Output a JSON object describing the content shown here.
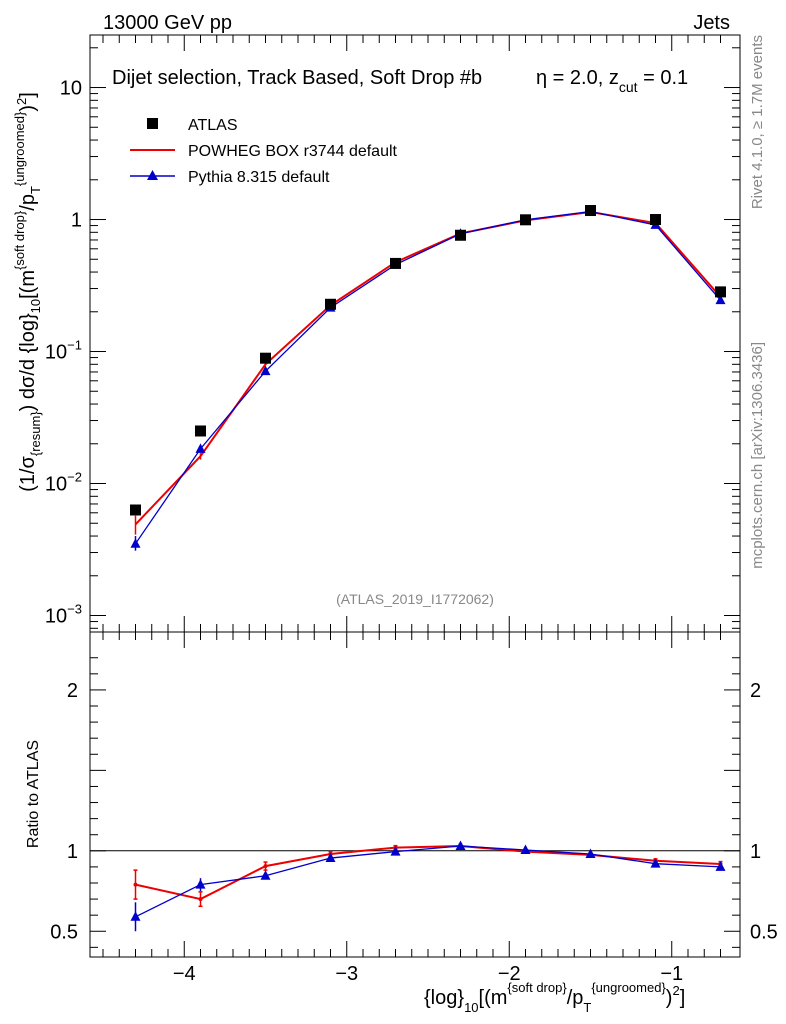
{
  "header": {
    "left": "13000 GeV pp",
    "right": "Jets",
    "side_top": "Rivet 4.1.0, ≥ 1.7M events",
    "side_bottom": "mcplots.cern.ch [arXiv:1306.3436]"
  },
  "colors": {
    "atlas": "#000000",
    "powheg": "#ee0000",
    "pythia": "#0000cc",
    "watermark": "#888888"
  },
  "chart_data": [
    {
      "type": "line",
      "panel": "main",
      "title_parts": {
        "pre": "Dijet selection, Track Based, Soft Drop #b",
        "eta": "η = 2.0, z",
        "sub": "cut",
        "post": " = 0.1"
      },
      "watermark": "(ATLAS_2019_I1772062)",
      "ylabel": "(1/σ{resum}) dσ/d {log}10[(m{soft drop}/pT{ungroomed})2]",
      "ylabel_parts": {
        "a": "(1/σ",
        "a_sub": "{resum}",
        "b": ") dσ/d {log}",
        "b_sub": "10",
        "c": "[(m",
        "c_sup": "{soft drop}",
        "d": "/p",
        "d_sub": "T",
        "d_sup": "{ungroomed}",
        "e": ")",
        "e_sup": "2",
        "f": "]"
      },
      "yscale": "log",
      "ylim": [
        0.00075,
        25
      ],
      "xlim": [
        -4.58,
        -0.58
      ],
      "yticks": [
        0.001,
        0.01,
        0.1,
        1,
        10
      ],
      "ytick_labels": [
        {
          "base": "10",
          "exp": "−3"
        },
        {
          "base": "10",
          "exp": "−2"
        },
        {
          "base": "10",
          "exp": "−1"
        },
        {
          "base": "1",
          "exp": ""
        },
        {
          "base": "10",
          "exp": ""
        }
      ],
      "legend": [
        {
          "name": "ATLAS",
          "style": "marker-square"
        },
        {
          "name": "POWHEG BOX r3744 default",
          "style": "line"
        },
        {
          "name": "Pythia 8.315 default",
          "style": "line-triangle"
        }
      ],
      "legend_position": "top-left",
      "x": [
        -4.3,
        -3.9,
        -3.5,
        -3.1,
        -2.7,
        -2.3,
        -1.9,
        -1.5,
        -1.1,
        -0.7
      ],
      "series": [
        {
          "name": "ATLAS",
          "values": [
            0.0063,
            0.025,
            0.089,
            0.228,
            0.465,
            0.76,
            0.995,
            1.17,
            1.0,
            0.283
          ]
        },
        {
          "name": "POWHEG BOX r3744 default",
          "values": [
            0.0049,
            0.0161,
            0.08,
            0.224,
            0.475,
            0.785,
            0.985,
            1.14,
            0.94,
            0.259
          ],
          "err_lo": [
            0.0041,
            0.0152
          ],
          "err_hi": [
            0.0057,
            0.017
          ]
        },
        {
          "name": "Pythia 8.315 default",
          "values": [
            0.0035,
            0.0183,
            0.071,
            0.215,
            0.455,
            0.78,
            0.995,
            1.15,
            0.91,
            0.245
          ],
          "err_lo": [
            0.0031,
            0.0173
          ],
          "err_hi": [
            0.004,
            0.0193
          ]
        }
      ]
    },
    {
      "type": "line",
      "panel": "ratio",
      "ylabel": "Ratio to ATLAS",
      "xlabel_parts": {
        "a": "{log}",
        "a_sub": "10",
        "b": "[(m",
        "b_sup": "{soft drop}",
        "c": "/p",
        "c_sub": "T",
        "c_sup": "{ungroomed}",
        "d": ")",
        "d_sup": "2",
        "e": "]"
      },
      "ylim": [
        0.34,
        2.36
      ],
      "yticks": [
        0.5,
        1,
        2
      ],
      "ytick_labels": [
        "0.5",
        "1",
        "2"
      ],
      "xticks": [
        -4,
        -3,
        -2,
        -1
      ],
      "xtick_labels": [
        "−4",
        "−3",
        "−2",
        "−1"
      ],
      "x": [
        -4.3,
        -3.9,
        -3.5,
        -3.1,
        -2.7,
        -2.3,
        -1.9,
        -1.5,
        -1.1,
        -0.7
      ],
      "series": [
        {
          "name": "POWHEG BOX r3744 default",
          "values": [
            0.79,
            0.7,
            0.905,
            0.98,
            1.02,
            1.03,
            0.995,
            0.975,
            0.938,
            0.918
          ],
          "err": [
            0.09,
            0.045,
            0.025,
            0.015,
            0.012,
            0.01,
            0.01,
            0.01,
            0.012,
            0.015
          ]
        },
        {
          "name": "Pythia 8.315 default",
          "values": [
            0.59,
            0.79,
            0.845,
            0.955,
            0.995,
            1.03,
            1.005,
            0.98,
            0.92,
            0.9
          ],
          "err": [
            0.09,
            0.04,
            0.02,
            0.012,
            0.01,
            0.008,
            0.008,
            0.008,
            0.01,
            0.012
          ]
        }
      ]
    }
  ]
}
